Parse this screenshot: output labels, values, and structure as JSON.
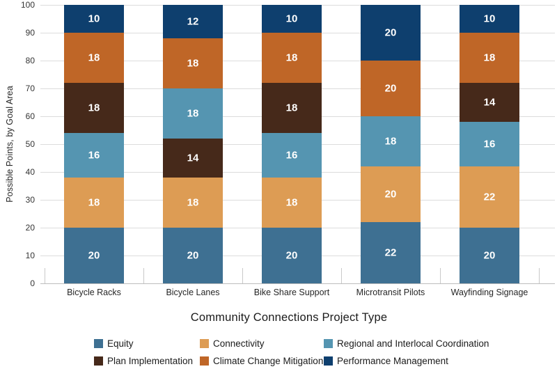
{
  "chart_data": {
    "type": "bar",
    "stacked": true,
    "xlabel": "Community Connections Project Type",
    "ylabel": "Possible Points, by Goal Area",
    "ylim": [
      0,
      100
    ],
    "ytick_step": 10,
    "grid": "horizontal",
    "legend_position": "bottom",
    "categories": [
      "Bicycle Racks",
      "Bicycle Lanes",
      "Bike Share Support",
      "Microtransit Pilots",
      "Wayfinding Signage"
    ],
    "series": [
      {
        "name": "Equity",
        "color": "#3e7092",
        "values": [
          20,
          20,
          20,
          22,
          20
        ]
      },
      {
        "name": "Connectivity",
        "color": "#dd9c54",
        "values": [
          18,
          18,
          18,
          20,
          22
        ]
      },
      {
        "name": "Regional and Interlocal Coordination",
        "color": "#5595b1",
        "values": [
          16,
          18,
          16,
          18,
          16
        ]
      },
      {
        "name": "Plan Implementation",
        "color": "#46291a",
        "values": [
          18,
          14,
          18,
          0,
          14
        ]
      },
      {
        "name": "Climate Change Mitigation",
        "color": "#bf6627",
        "values": [
          18,
          18,
          18,
          20,
          18
        ]
      },
      {
        "name": "Performance Management",
        "color": "#0e3f6e",
        "values": [
          10,
          12,
          10,
          20,
          10
        ]
      }
    ],
    "stacks": [
      [
        {
          "series": "Equity",
          "value": 20
        },
        {
          "series": "Connectivity",
          "value": 18
        },
        {
          "series": "Regional and Interlocal Coordination",
          "value": 16
        },
        {
          "series": "Plan Implementation",
          "value": 18
        },
        {
          "series": "Climate Change Mitigation",
          "value": 18
        },
        {
          "series": "Performance Management",
          "value": 10
        }
      ],
      [
        {
          "series": "Equity",
          "value": 20
        },
        {
          "series": "Connectivity",
          "value": 18
        },
        {
          "series": "Plan Implementation",
          "value": 14
        },
        {
          "series": "Regional and Interlocal Coordination",
          "value": 18
        },
        {
          "series": "Climate Change Mitigation",
          "value": 18
        },
        {
          "series": "Performance Management",
          "value": 12
        }
      ],
      [
        {
          "series": "Equity",
          "value": 20
        },
        {
          "series": "Connectivity",
          "value": 18
        },
        {
          "series": "Regional and Interlocal Coordination",
          "value": 16
        },
        {
          "series": "Plan Implementation",
          "value": 18
        },
        {
          "series": "Climate Change Mitigation",
          "value": 18
        },
        {
          "series": "Performance Management",
          "value": 10
        }
      ],
      [
        {
          "series": "Equity",
          "value": 22
        },
        {
          "series": "Connectivity",
          "value": 20
        },
        {
          "series": "Regional and Interlocal Coordination",
          "value": 18
        },
        {
          "series": "Climate Change Mitigation",
          "value": 20
        },
        {
          "series": "Performance Management",
          "value": 20
        }
      ],
      [
        {
          "series": "Equity",
          "value": 20
        },
        {
          "series": "Connectivity",
          "value": 22
        },
        {
          "series": "Regional and Interlocal Coordination",
          "value": 16
        },
        {
          "series": "Plan Implementation",
          "value": 14
        },
        {
          "series": "Climate Change Mitigation",
          "value": 18
        },
        {
          "series": "Performance Management",
          "value": 10
        }
      ]
    ],
    "legend_rows": [
      [
        "Equity",
        "Connectivity",
        "Regional and Interlocal Coordination"
      ],
      [
        "Plan Implementation",
        "Climate Change Mitigation",
        "Performance Management"
      ]
    ]
  }
}
